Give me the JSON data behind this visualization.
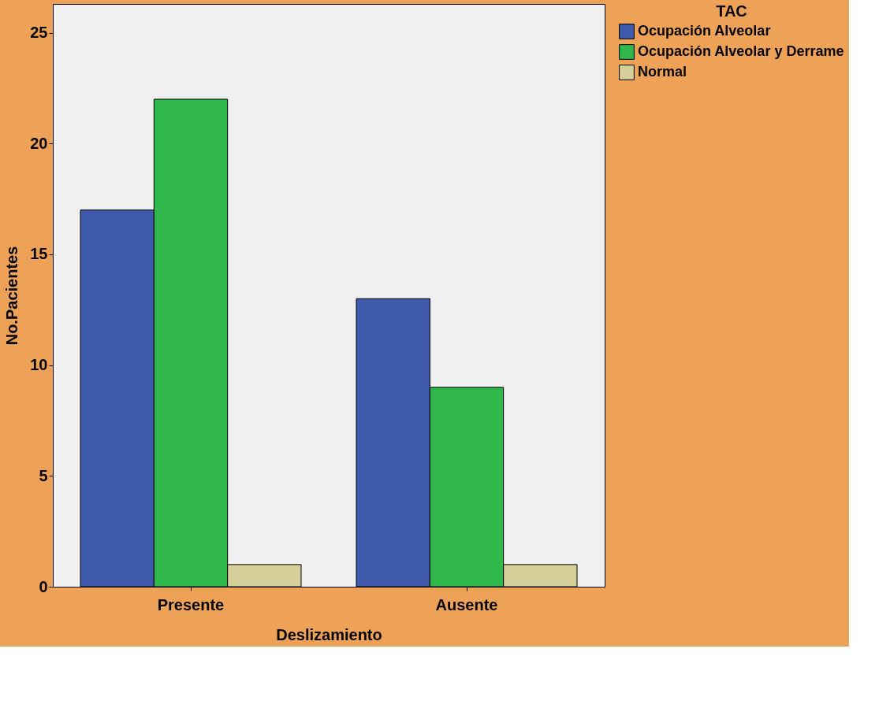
{
  "chart_data": {
    "type": "bar",
    "xlabel": "Deslizamiento",
    "ylabel": "No.Pacientes",
    "legend_title": "TAC",
    "categories": [
      "Presente",
      "Ausente"
    ],
    "series": [
      {
        "name": "Ocupación Alveolar",
        "color": "#3f59ab",
        "values": [
          17,
          13
        ]
      },
      {
        "name": "Ocupación Alveolar y Derrame",
        "color": "#30b84a",
        "values": [
          22,
          9
        ]
      },
      {
        "name": "Normal",
        "color": "#d5cf9a",
        "values": [
          1,
          1
        ]
      }
    ],
    "ylim": [
      0,
      26.3
    ],
    "yticks": [
      0,
      5,
      10,
      15,
      20,
      25
    ],
    "grid": false,
    "legend": "right"
  }
}
